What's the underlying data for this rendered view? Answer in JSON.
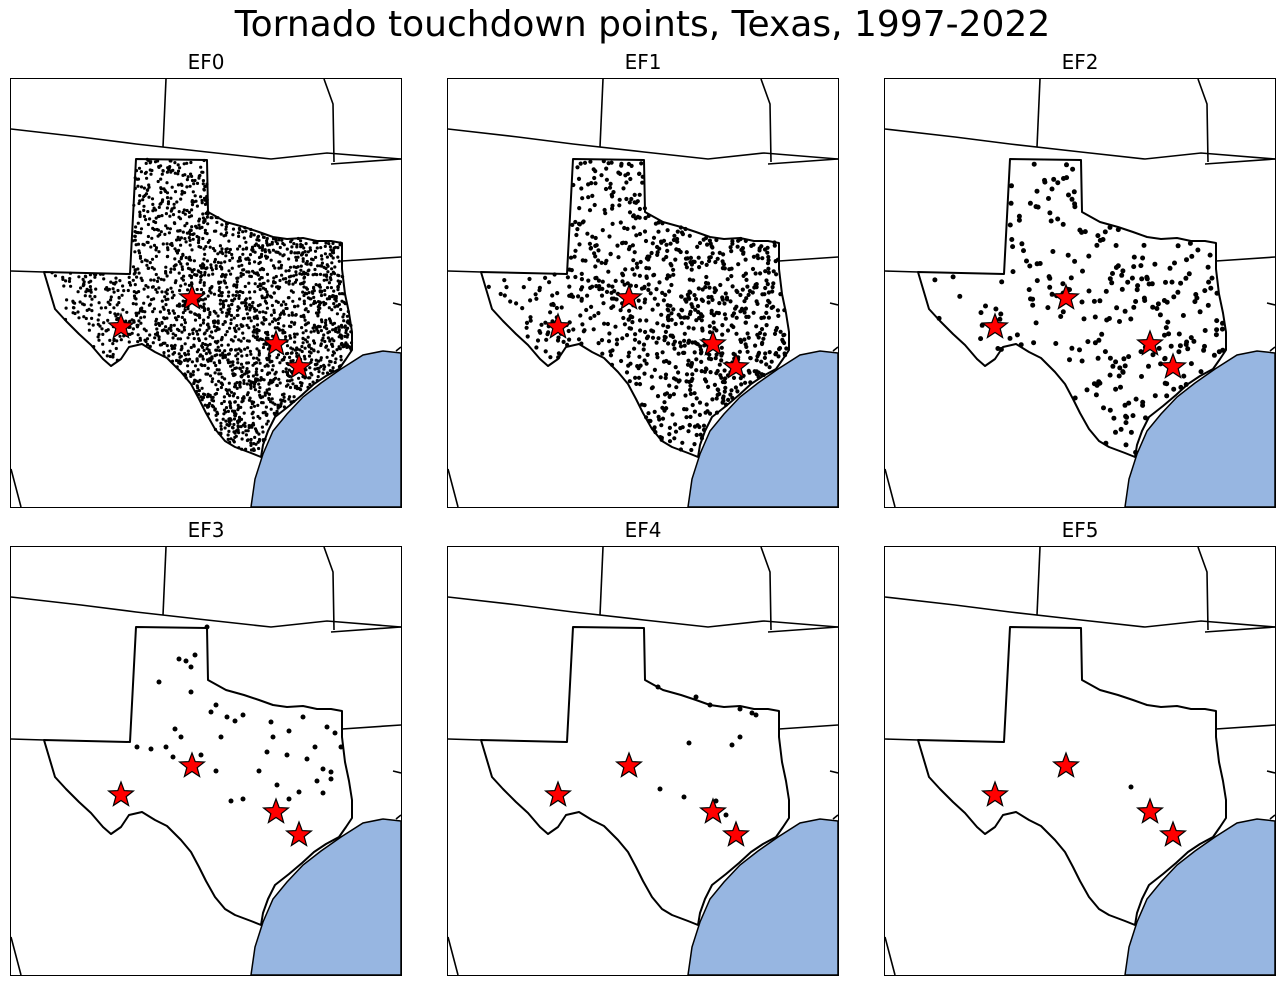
{
  "title": "Tornado touchdown points, Texas, 1997-2022",
  "colors": {
    "ocean": "#97b6e1",
    "marker": "#ff0000",
    "points": "#000000",
    "borders": "#000000"
  },
  "marker_icon": "star",
  "panels": [
    {
      "title": "EF0",
      "rating": "EF0"
    },
    {
      "title": "EF1",
      "rating": "EF1"
    },
    {
      "title": "EF2",
      "rating": "EF2"
    },
    {
      "title": "EF3",
      "rating": "EF3"
    },
    {
      "title": "EF4",
      "rating": "EF4"
    },
    {
      "title": "EF5",
      "rating": "EF5"
    }
  ]
}
